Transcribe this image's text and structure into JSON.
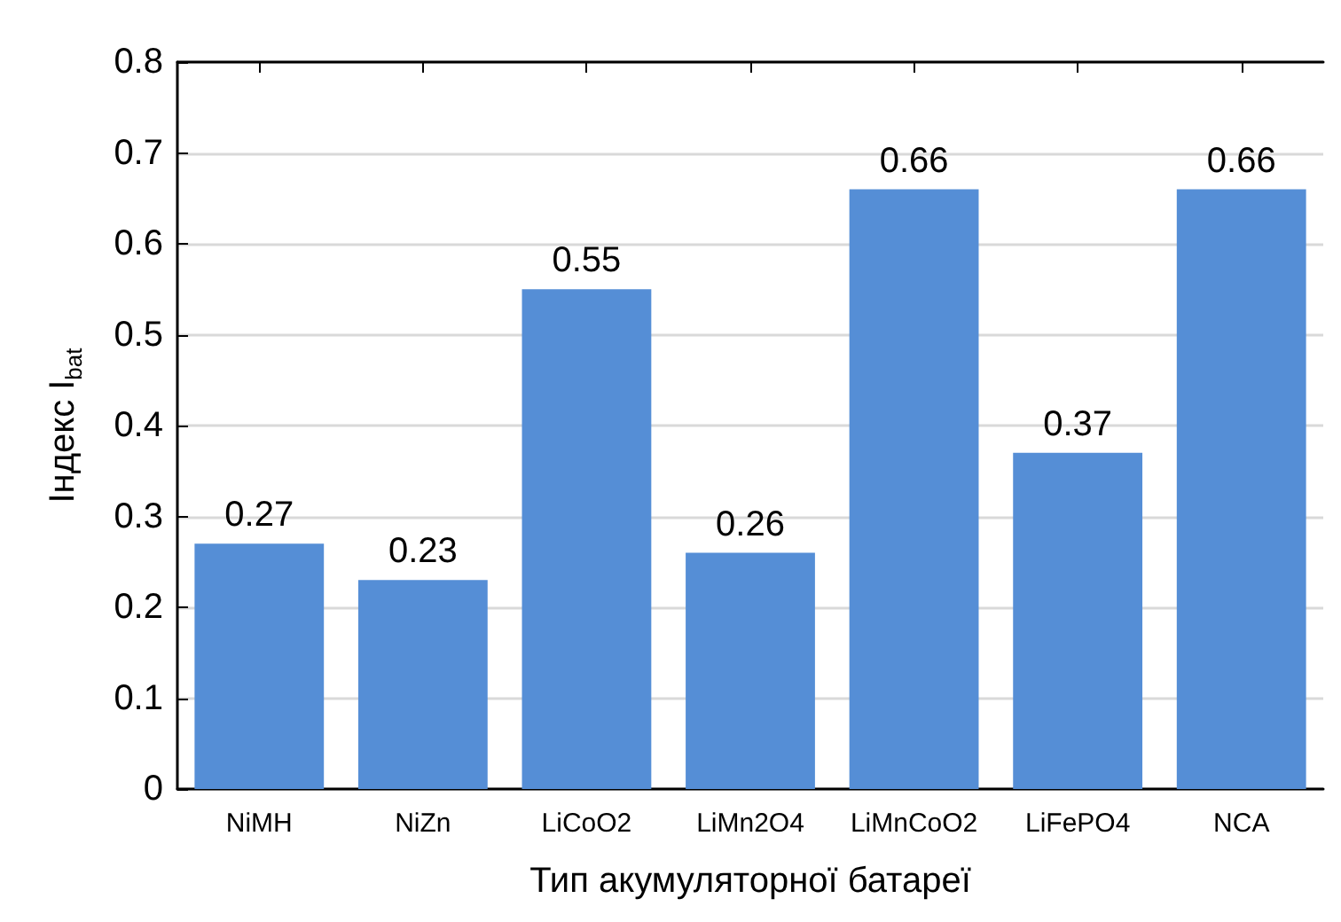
{
  "chart_data": {
    "type": "bar",
    "xlabel": "Тип акумуляторної батареї",
    "ylabel": "Індекс I$_{bat}$",
    "categories": [
      "NiMH",
      "NiZn",
      "LiCoO2",
      "LiMn2O4",
      "LiMnCoO2",
      "LiFePO4",
      "NCA"
    ],
    "values": [
      0.27,
      0.23,
      0.55,
      0.26,
      0.66,
      0.37,
      0.66
    ],
    "color": "#558ed6",
    "ylim": [
      0,
      0.8
    ],
    "yticks": [
      0,
      0.1,
      0.2,
      0.3,
      0.4,
      0.5,
      0.6,
      0.7,
      0.8
    ],
    "grid": "y",
    "data_labels": true
  }
}
